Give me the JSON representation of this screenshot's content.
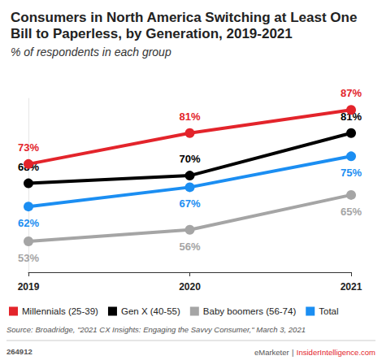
{
  "chart_data": {
    "type": "line",
    "title": "Consumers in North America Switching at Least One Bill to Paperless, by Generation, 2019-2021",
    "subtitle": "% of respondents in each group",
    "categories": [
      "2019",
      "2020",
      "2021"
    ],
    "series": [
      {
        "name": "Millennials (25-39)",
        "color": "#e3242b",
        "values": [
          73,
          81,
          87
        ],
        "value_labels": [
          "73%",
          "81%",
          "87%"
        ]
      },
      {
        "name": "Gen X (40-55)",
        "color": "#000000",
        "values": [
          68,
          70,
          81
        ],
        "value_labels": [
          "68%",
          "70%",
          "81%"
        ]
      },
      {
        "name": "Baby boomers (56-74)",
        "color": "#a5a5a5",
        "values": [
          53,
          56,
          65
        ],
        "value_labels": [
          "53%",
          "56%",
          "65%"
        ]
      },
      {
        "name": "Total",
        "color": "#1b8ef2",
        "values": [
          62,
          67,
          75
        ],
        "value_labels": [
          "62%",
          "67%",
          "75%"
        ]
      }
    ],
    "ylim": [
      45,
      90
    ],
    "grid": false,
    "tick_labels": "x",
    "data_labels": true,
    "legend": "bottom",
    "marker": "circle",
    "source": "Source: Broadridge, \"2021 CX Insights: Engaging the Savvy Consumer,\" March 3, 2021",
    "annotations": [
      "264912",
      "eMarketer",
      "|",
      "InsiderIntelligence.com"
    ]
  }
}
